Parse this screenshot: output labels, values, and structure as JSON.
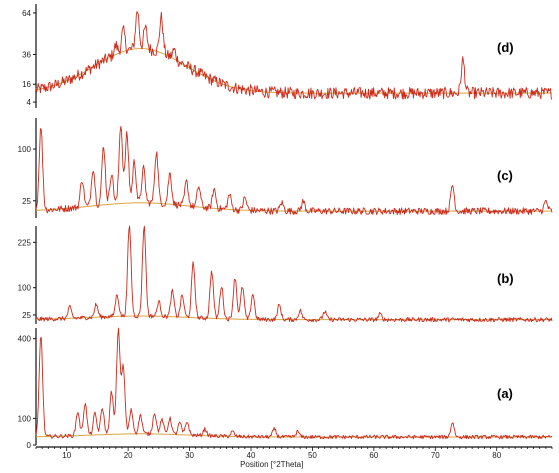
{
  "chart_data": {
    "type": "line",
    "xlabel": "Position [°2Theta]",
    "xlim": [
      5,
      89
    ],
    "x_ticks": [
      10,
      20,
      30,
      40,
      50,
      60,
      70,
      80
    ],
    "line_color": "#cc2a1a",
    "baseline_color": "#d9a441",
    "panels": [
      {
        "label": "(d)",
        "y_ticks": [
          64,
          36,
          16,
          4
        ],
        "ylim": [
          0,
          70
        ],
        "base": 10,
        "noise": 4,
        "hump": {
          "center": 22,
          "width": 7.5,
          "height": 30
        },
        "peaks": [
          {
            "x": 19.2,
            "h": 14
          },
          {
            "x": 21.5,
            "h": 26
          },
          {
            "x": 22.8,
            "h": 14
          },
          {
            "x": 25.4,
            "h": 24
          },
          {
            "x": 18.0,
            "h": 6
          },
          {
            "x": 27.5,
            "h": 6
          },
          {
            "x": 74.5,
            "h": 22
          }
        ]
      },
      {
        "label": "(c)",
        "y_ticks": [
          100,
          25
        ],
        "ylim": [
          0,
          145
        ],
        "base": 10,
        "noise": 5,
        "hump": {
          "center": 22,
          "width": 8,
          "height": 12
        },
        "peaks": [
          {
            "x": 5.8,
            "h": 120
          },
          {
            "x": 12.5,
            "h": 40
          },
          {
            "x": 14.3,
            "h": 55
          },
          {
            "x": 16.0,
            "h": 85
          },
          {
            "x": 17.3,
            "h": 45
          },
          {
            "x": 18.8,
            "h": 115
          },
          {
            "x": 19.8,
            "h": 100
          },
          {
            "x": 21.0,
            "h": 60
          },
          {
            "x": 22.5,
            "h": 50
          },
          {
            "x": 24.6,
            "h": 75
          },
          {
            "x": 26.8,
            "h": 45
          },
          {
            "x": 29.5,
            "h": 35
          },
          {
            "x": 31.5,
            "h": 30
          },
          {
            "x": 34.0,
            "h": 28
          },
          {
            "x": 36.5,
            "h": 22
          },
          {
            "x": 39.0,
            "h": 18
          },
          {
            "x": 45.0,
            "h": 12
          },
          {
            "x": 48.5,
            "h": 14
          },
          {
            "x": 72.8,
            "h": 38
          },
          {
            "x": 88.0,
            "h": 14
          }
        ]
      },
      {
        "label": "(b)",
        "y_ticks": [
          225,
          100,
          25
        ],
        "ylim": [
          0,
          270
        ],
        "base": 12,
        "noise": 6,
        "hump": {
          "center": 22,
          "width": 8,
          "height": 10
        },
        "peaks": [
          {
            "x": 10.5,
            "h": 30
          },
          {
            "x": 14.8,
            "h": 35
          },
          {
            "x": 18.2,
            "h": 60
          },
          {
            "x": 20.2,
            "h": 250
          },
          {
            "x": 22.6,
            "h": 248
          },
          {
            "x": 25.0,
            "h": 40
          },
          {
            "x": 27.2,
            "h": 70
          },
          {
            "x": 28.8,
            "h": 60
          },
          {
            "x": 30.6,
            "h": 150
          },
          {
            "x": 33.6,
            "h": 130
          },
          {
            "x": 35.2,
            "h": 90
          },
          {
            "x": 37.4,
            "h": 115
          },
          {
            "x": 38.6,
            "h": 90
          },
          {
            "x": 40.3,
            "h": 70
          },
          {
            "x": 44.6,
            "h": 40
          },
          {
            "x": 48.0,
            "h": 25
          },
          {
            "x": 52.0,
            "h": 22
          },
          {
            "x": 61.0,
            "h": 15
          }
        ]
      },
      {
        "label": "(a)",
        "y_ticks": [
          400,
          100,
          0
        ],
        "ylim": [
          0,
          440
        ],
        "base": 30,
        "noise": 7,
        "hump": {
          "center": 22,
          "width": 8,
          "height": 12
        },
        "peaks": [
          {
            "x": 5.8,
            "h": 380
          },
          {
            "x": 11.8,
            "h": 90
          },
          {
            "x": 13.0,
            "h": 120
          },
          {
            "x": 14.6,
            "h": 80
          },
          {
            "x": 15.8,
            "h": 100
          },
          {
            "x": 17.3,
            "h": 160
          },
          {
            "x": 18.4,
            "h": 390
          },
          {
            "x": 19.2,
            "h": 250
          },
          {
            "x": 20.5,
            "h": 90
          },
          {
            "x": 22.0,
            "h": 70
          },
          {
            "x": 24.3,
            "h": 80
          },
          {
            "x": 25.5,
            "h": 55
          },
          {
            "x": 26.8,
            "h": 60
          },
          {
            "x": 28.4,
            "h": 45
          },
          {
            "x": 29.6,
            "h": 50
          },
          {
            "x": 32.5,
            "h": 25
          },
          {
            "x": 37.0,
            "h": 18
          },
          {
            "x": 43.8,
            "h": 30
          },
          {
            "x": 47.6,
            "h": 20
          },
          {
            "x": 72.8,
            "h": 55
          }
        ]
      }
    ]
  }
}
